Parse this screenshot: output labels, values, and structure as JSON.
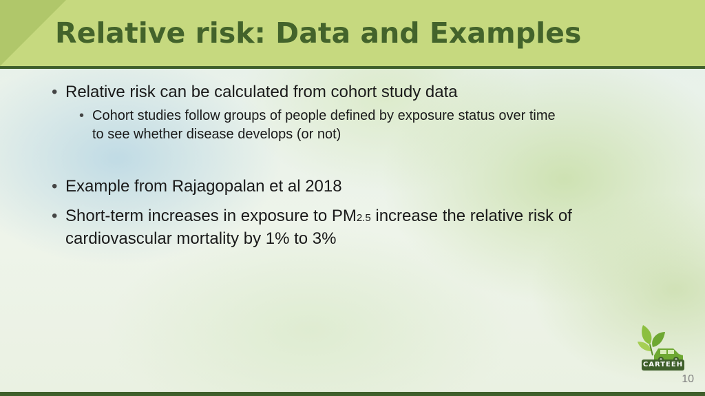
{
  "slide": {
    "title": "Relative risk: Data and Examples",
    "page_number": "10"
  },
  "bullets": {
    "b1": "Relative risk can be calculated from cohort study data",
    "b1_sub_line1": "Cohort studies follow groups of people defined by exposure status over time",
    "b1_sub_line2": "to see whether disease develops (or not)",
    "b2": "Example from Rajagopalan et al 2018",
    "b3_pre": "Short-term increases in exposure to PM",
    "b3_sub": "2.5",
    "b3_post": " increase the relative risk of",
    "b3_line2": "cardiovascular mortality by 1% to 3%"
  },
  "logo": {
    "label": "CARTEEH",
    "icon": "leaf-car-icon"
  },
  "colors": {
    "header": "#c6d97f",
    "header_dark": "#3f5f2b",
    "title_text": "#43632b"
  }
}
